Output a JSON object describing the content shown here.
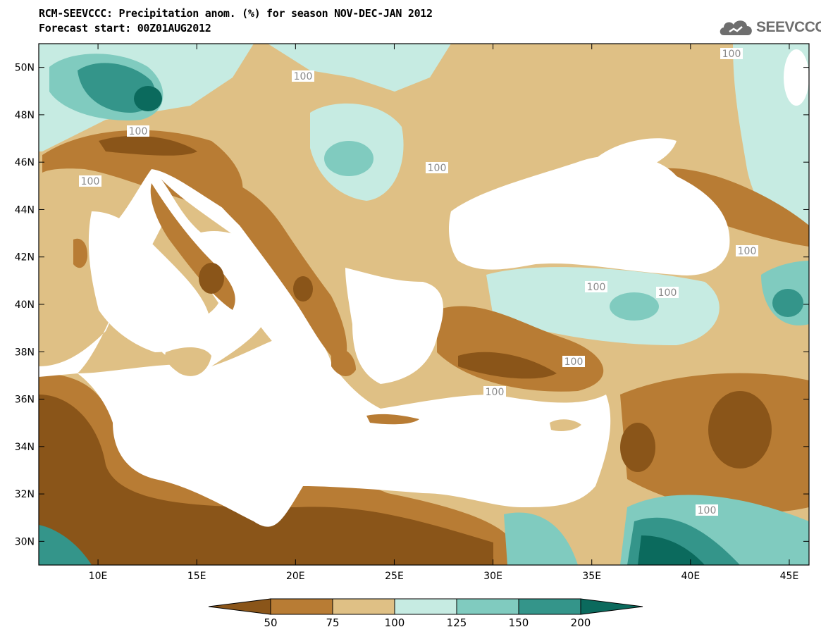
{
  "header": {
    "title_line1": "RCM-SEEVCCC: Precipitation anom. (%) for season NOV-DEC-JAN 2012",
    "title_line2": "Forecast start: 00Z01AUG2012",
    "logo_text": "SEEVCCC",
    "logo_icon": "cloud-icon"
  },
  "map": {
    "lon_labels": [
      "10E",
      "15E",
      "20E",
      "25E",
      "30E",
      "35E",
      "40E",
      "45E"
    ],
    "lat_labels": [
      "50N",
      "48N",
      "46N",
      "44N",
      "42N",
      "40N",
      "38N",
      "36N",
      "34N",
      "32N",
      "30N"
    ],
    "lon_range": [
      7,
      46
    ],
    "lat_range": [
      29,
      51
    ],
    "contour_label": "100",
    "colors": {
      "below_50": "#8a5519",
      "50_75": "#b87c34",
      "75_100": "#dfc085",
      "100_125": "#c6ebe2",
      "125_150": "#80cbbf",
      "150_200": "#34958a",
      "above_200": "#0b6a5d",
      "sea": "#ffffff"
    }
  },
  "legend": {
    "labels": [
      "50",
      "75",
      "100",
      "125",
      "150",
      "200"
    ],
    "colors": [
      "#8a5519",
      "#b87c34",
      "#dfc085",
      "#c6ebe2",
      "#80cbbf",
      "#34958a",
      "#0b6a5d"
    ]
  }
}
